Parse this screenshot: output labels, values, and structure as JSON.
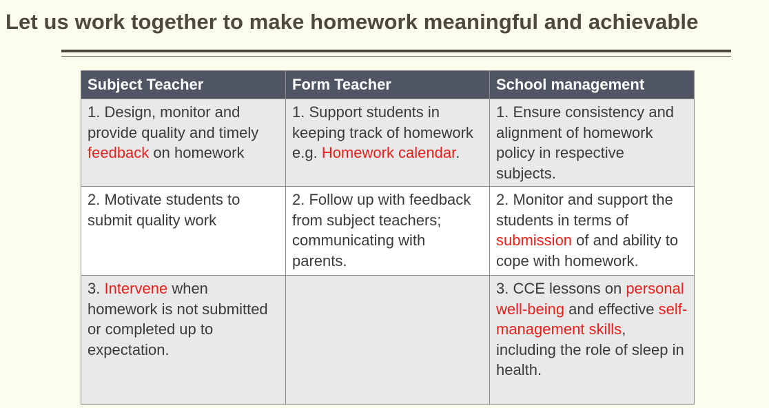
{
  "title": "Let us work together to make homework meaningful and achievable",
  "colors": {
    "background": "#fdfdee",
    "header_bg": "#4f5563",
    "highlight": "#e8201c",
    "row_alt": "#e9e9e9"
  },
  "table": {
    "headers": [
      "Subject Teacher",
      "Form Teacher",
      "School management"
    ],
    "rows": [
      {
        "subject_teacher": {
          "a": "1. Design, monitor and provide quality and timely ",
          "hl": "feedback",
          "b": " on homework"
        },
        "form_teacher": {
          "a": "1. Support students in keeping track of homework e.g. ",
          "hl": "Homework calendar",
          "b": "."
        },
        "school_management": {
          "a": "1. Ensure consistency and alignment of homework policy in respective subjects."
        }
      },
      {
        "subject_teacher": {
          "a": "2. Motivate students to submit quality work"
        },
        "form_teacher": {
          "a": "2. Follow up with feedback from subject teachers; communicating with parents."
        },
        "school_management": {
          "a": "2. Monitor and support the students in terms of ",
          "hl": "submission",
          "b": " of and ability to cope with homework."
        }
      },
      {
        "subject_teacher": {
          "a": "3. ",
          "hl": "Intervene",
          "b": " when homework is not submitted or completed up to expectation."
        },
        "form_teacher": {
          "a": ""
        },
        "school_management": {
          "a": "3. CCE lessons on ",
          "hl": "personal well-being",
          "b": " and effective ",
          "hl2": "self-management skills",
          "c": ", including the role of sleep in health."
        }
      }
    ]
  }
}
